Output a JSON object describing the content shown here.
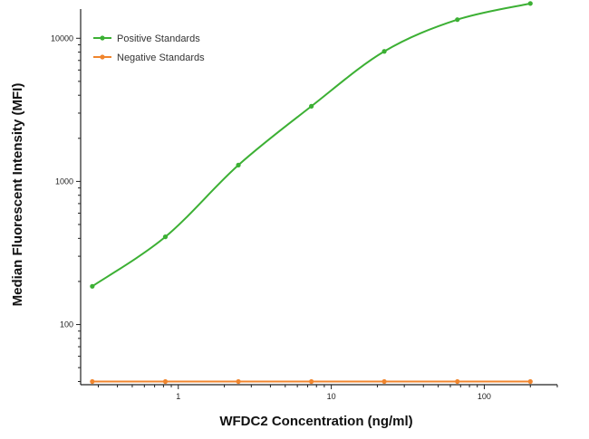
{
  "chart_data": {
    "type": "line",
    "title": "",
    "xlabel": "WFDC2 Concentration (ng/ml)",
    "ylabel": "Median Fluorescent Intensity (MFI)",
    "x_scale": "log",
    "y_scale": "log",
    "xlim": [
      0.23,
      300
    ],
    "ylim": [
      38,
      16000
    ],
    "x_ticks": [
      {
        "value": 1,
        "label": "1"
      },
      {
        "value": 10,
        "label": "10"
      },
      {
        "value": 100,
        "label": "100"
      }
    ],
    "y_ticks": [
      {
        "value": 100,
        "label": "100"
      },
      {
        "value": 1000,
        "label": "1000"
      },
      {
        "value": 10000,
        "label": "10000"
      }
    ],
    "legend_position": "top-left",
    "series": [
      {
        "name": "Positive Standards",
        "color": "#3cb034",
        "x": [
          0.274,
          0.823,
          2.47,
          7.41,
          22.2,
          66.7,
          200
        ],
        "y": [
          185,
          410,
          1300,
          3350,
          8100,
          13500,
          17500
        ],
        "curve_fit": true
      },
      {
        "name": "Negative Standards",
        "color": "#f0852d",
        "x": [
          0.274,
          0.823,
          2.47,
          7.41,
          22.2,
          66.7,
          200
        ],
        "y": [
          40,
          40,
          40,
          40,
          40,
          40,
          40
        ],
        "curve_fit": false
      }
    ]
  }
}
